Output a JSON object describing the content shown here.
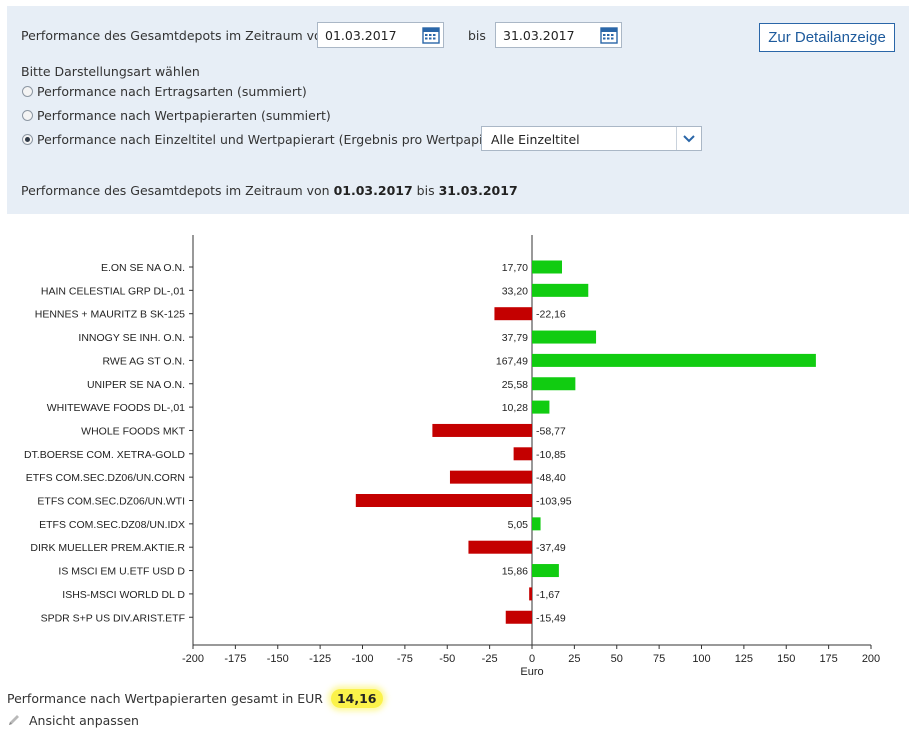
{
  "filter": {
    "period_label": "Performance des Gesamtdepots im Zeitraum von",
    "from_date": "01.03.2017",
    "to_label": "bis",
    "to_date": "31.03.2017",
    "detail_button": "Zur Detailanzeige",
    "display_type_label": "Bitte Darstellungsart wählen",
    "options": [
      {
        "label": "Performance nach Ertragsarten (summiert)",
        "checked": false
      },
      {
        "label": "Performance nach Wertpapierarten (summiert)",
        "checked": false
      },
      {
        "label": "Performance nach Einzeltitel und Wertpapierart (Ergebnis pro Wertpapier)",
        "checked": true
      }
    ],
    "select_value": "Alle Einzeltitel",
    "summary_prefix": "Performance des Gesamtdepots im Zeitraum von",
    "summary_from": "01.03.2017",
    "summary_mid": "bis",
    "summary_to": "31.03.2017"
  },
  "colors": {
    "positive": "#11cc11",
    "negative": "#c40000",
    "panel": "#e7eef6",
    "button_text": "#1d5a9c"
  },
  "chart_data": {
    "type": "bar",
    "orientation": "horizontal",
    "xlabel": "Euro",
    "xlim": [
      -200,
      200
    ],
    "xticks": [
      -200,
      -175,
      -150,
      -125,
      -100,
      -75,
      -50,
      -25,
      0,
      25,
      50,
      75,
      100,
      125,
      150,
      175,
      200
    ],
    "grid": false,
    "categories": [
      "E.ON SE NA O.N.",
      "HAIN CELESTIAL GRP DL-,01",
      "HENNES + MAURITZ B SK-125",
      "INNOGY SE  INH. O.N.",
      "RWE AG ST O.N.",
      "UNIPER SE  NA O.N.",
      "WHITEWAVE FOODS    DL-,01",
      "WHOLE FOODS MKT",
      "DT.BOERSE COM. XETRA-GOLD",
      "ETFS COM.SEC.DZ06/UN.CORN",
      "ETFS COM.SEC.DZ06/UN.WTI",
      "ETFS COM.SEC.DZ08/UN.IDX",
      "DIRK MUELLER PREM.AKTIE.R",
      "IS MSCI EM U.ETF USD D",
      "ISHS-MSCI WORLD DL D",
      "SPDR S+P US DIV.ARIST.ETF"
    ],
    "values": [
      17.7,
      33.2,
      -22.16,
      37.79,
      167.49,
      25.58,
      10.28,
      -58.77,
      -10.85,
      -48.4,
      -103.95,
      5.05,
      -37.49,
      15.86,
      -1.67,
      -15.49
    ],
    "value_labels": [
      "17,70",
      "33,20",
      "-22,16",
      "37,79",
      "167,49",
      "25,58",
      "10,28",
      "-58,77",
      "-10,85",
      "-48,40",
      "-103,95",
      "5,05",
      "-37,49",
      "15,86",
      "-1,67",
      "-15,49"
    ]
  },
  "footer": {
    "total_label": "Performance nach Wertpapierarten gesamt in EUR",
    "total_value": "14,16",
    "adjust_label": "Ansicht anpassen"
  }
}
